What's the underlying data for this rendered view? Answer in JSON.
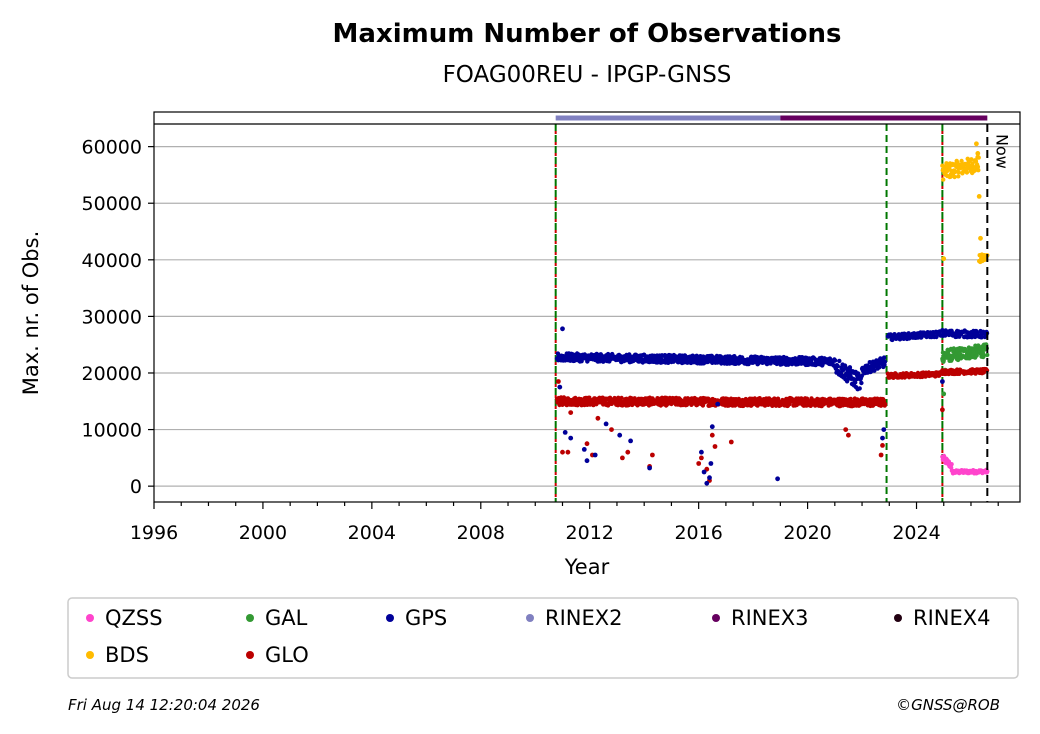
{
  "chart_data": {
    "type": "scatter",
    "title": "Maximum Number of Observations",
    "subtitle": "FOAG00REU - IPGP-GNSS",
    "xlabel": "Year",
    "ylabel": "Max. nr. of Obs.",
    "xlim": [
      1996,
      2027.8
    ],
    "ylim": [
      -2800,
      64000
    ],
    "x_ticks": [
      1996,
      2000,
      2004,
      2008,
      2012,
      2016,
      2020,
      2024
    ],
    "y_ticks": [
      0,
      10000,
      20000,
      30000,
      40000,
      50000,
      60000
    ],
    "grid": "horizontal",
    "now_label": "Now",
    "now_year": 2026.6,
    "event_lines": [
      {
        "year": 2010.75,
        "color": "#007700",
        "style": "green-red dashed"
      },
      {
        "year": 2022.9,
        "color": "#007700",
        "style": "dashed"
      },
      {
        "year": 2024.95,
        "color": "#007700",
        "style": "green-red dashed"
      }
    ],
    "rinex_bars": [
      {
        "name": "RINEX2",
        "start": 2010.75,
        "end": 2019.0,
        "color": "#8080c0"
      },
      {
        "name": "RINEX3",
        "start": 2019.0,
        "end": 2026.6,
        "color": "#66005f"
      }
    ],
    "series": [
      {
        "name": "QZSS",
        "color": "#ff44cc",
        "segments": [
          {
            "x0": 2024.95,
            "x1": 2025.3,
            "y0": 5000,
            "y1": 3500,
            "noise": 600,
            "step": 0.02
          },
          {
            "x0": 2025.3,
            "x1": 2026.6,
            "y0": 2500,
            "y1": 2600,
            "noise": 300,
            "step": 0.02
          }
        ]
      },
      {
        "name": "BDS",
        "color": "#ffbb00",
        "segments": [
          {
            "x0": 2024.95,
            "x1": 2026.3,
            "y0": 55500,
            "y1": 57000,
            "noise": 1400,
            "step": 0.015
          },
          {
            "x0": 2026.3,
            "x1": 2026.6,
            "y0": 40000,
            "y1": 40500,
            "noise": 800,
            "step": 0.02
          }
        ],
        "outliers": [
          [
            2025.0,
            40200
          ],
          [
            2026.3,
            51200
          ],
          [
            2026.35,
            43800
          ],
          [
            2026.2,
            60500
          ],
          [
            2026.25,
            58800
          ]
        ]
      },
      {
        "name": "GAL",
        "color": "#339933",
        "segments": [
          {
            "x0": 2024.95,
            "x1": 2026.6,
            "y0": 23000,
            "y1": 24000,
            "noise": 1100,
            "step": 0.012
          }
        ],
        "outliers": [
          [
            2025.0,
            16300
          ],
          [
            2025.05,
            20500
          ]
        ]
      },
      {
        "name": "GLO",
        "color": "#bb0000",
        "segments": [
          {
            "x0": 2010.8,
            "x1": 2022.85,
            "y0": 15000,
            "y1": 14800,
            "noise": 700,
            "step": 0.015
          },
          {
            "x0": 2022.95,
            "x1": 2024.9,
            "y0": 19500,
            "y1": 19800,
            "noise": 400,
            "step": 0.02
          },
          {
            "x0": 2024.95,
            "x1": 2026.6,
            "y0": 20200,
            "y1": 20300,
            "noise": 400,
            "step": 0.02
          }
        ],
        "outliers": [
          [
            2010.85,
            18500
          ],
          [
            2011.0,
            6000
          ],
          [
            2011.2,
            6000
          ],
          [
            2011.3,
            13000
          ],
          [
            2011.9,
            7500
          ],
          [
            2012.1,
            5500
          ],
          [
            2012.3,
            12000
          ],
          [
            2012.8,
            10000
          ],
          [
            2013.2,
            5000
          ],
          [
            2013.4,
            6000
          ],
          [
            2014.2,
            3500
          ],
          [
            2014.3,
            5500
          ],
          [
            2016.0,
            4000
          ],
          [
            2016.1,
            5000
          ],
          [
            2016.3,
            3000
          ],
          [
            2016.4,
            1000
          ],
          [
            2016.5,
            9000
          ],
          [
            2016.6,
            7000
          ],
          [
            2017.2,
            7800
          ],
          [
            2021.4,
            10000
          ],
          [
            2021.5,
            9000
          ],
          [
            2022.7,
            5500
          ],
          [
            2022.75,
            7200
          ],
          [
            2024.95,
            13500
          ]
        ]
      },
      {
        "name": "GPS",
        "color": "#000099",
        "segments": [
          {
            "x0": 2010.8,
            "x1": 2021.0,
            "y0": 22800,
            "y1": 22000,
            "noise": 700,
            "step": 0.015
          },
          {
            "x0": 2021.0,
            "x1": 2022.0,
            "y0": 21500,
            "y1": 18000,
            "noise": 1500,
            "step": 0.015
          },
          {
            "x0": 2022.0,
            "x1": 2022.85,
            "y0": 20500,
            "y1": 22000,
            "noise": 900,
            "step": 0.015
          },
          {
            "x0": 2022.95,
            "x1": 2024.9,
            "y0": 26300,
            "y1": 26900,
            "noise": 500,
            "step": 0.02
          },
          {
            "x0": 2024.95,
            "x1": 2026.6,
            "y0": 27000,
            "y1": 26800,
            "noise": 600,
            "step": 0.02
          }
        ],
        "outliers": [
          [
            2011.0,
            27800
          ],
          [
            2010.9,
            17500
          ],
          [
            2011.1,
            9500
          ],
          [
            2011.3,
            8500
          ],
          [
            2011.8,
            6500
          ],
          [
            2011.9,
            4500
          ],
          [
            2012.2,
            5500
          ],
          [
            2012.6,
            11000
          ],
          [
            2013.1,
            9000
          ],
          [
            2013.5,
            8000
          ],
          [
            2014.2,
            3200
          ],
          [
            2016.1,
            6000
          ],
          [
            2016.2,
            2500
          ],
          [
            2016.3,
            500
          ],
          [
            2016.4,
            1500
          ],
          [
            2016.45,
            4000
          ],
          [
            2016.5,
            10500
          ],
          [
            2016.7,
            14500
          ],
          [
            2018.9,
            1300
          ],
          [
            2022.75,
            8500
          ],
          [
            2022.8,
            10000
          ],
          [
            2024.95,
            18500
          ]
        ]
      }
    ],
    "legend": {
      "placement": "bottom",
      "entries": [
        {
          "label": "QZSS",
          "color": "#ff44cc"
        },
        {
          "label": "GAL",
          "color": "#339933"
        },
        {
          "label": "GPS",
          "color": "#000099"
        },
        {
          "label": "RINEX2",
          "color": "#8080c0"
        },
        {
          "label": "RINEX3",
          "color": "#66005f"
        },
        {
          "label": "RINEX4",
          "color": "#220011"
        },
        {
          "label": "BDS",
          "color": "#ffbb00"
        },
        {
          "label": "GLO",
          "color": "#bb0000"
        }
      ]
    },
    "footer_left": "Fri Aug 14 12:20:04 2026",
    "footer_right": "©GNSS@ROB"
  }
}
